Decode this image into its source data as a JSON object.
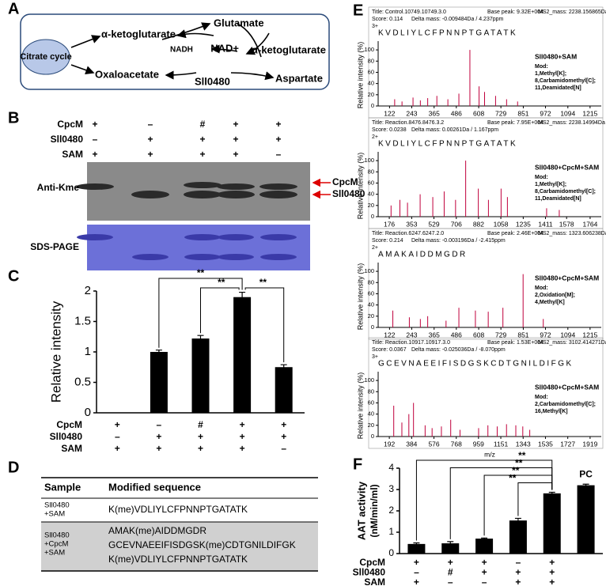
{
  "panel_labels": [
    "A",
    "B",
    "C",
    "D",
    "E",
    "F"
  ],
  "panel_a": {
    "citrate": "Citrate cycle",
    "akg1": "α-ketoglutarate",
    "glutamate": "Glutamate",
    "nadh": "NADH",
    "nad": "NAD+",
    "akg2": "α-ketoglutarate",
    "oxaloacetate": "Oxaloacetate",
    "enzyme": "Sll0480",
    "aspartate": "Aspartate"
  },
  "panel_b": {
    "row_names": [
      "CpcM",
      "Sll0480",
      "SAM"
    ],
    "rows": [
      [
        "+",
        "–",
        "#",
        "+",
        "+"
      ],
      [
        "–",
        "+",
        "+",
        "+",
        "+"
      ],
      [
        "+",
        "+",
        "+",
        "+",
        "–"
      ]
    ],
    "blot_label": "Anti-Kme",
    "band_labels": [
      "CpcM",
      "Sll0480"
    ],
    "gel_label": "SDS-PAGE"
  },
  "panel_c": {
    "type": "bar",
    "ylabel": "Relative intensity",
    "values": [
      0,
      1.0,
      1.22,
      1.9,
      0.75
    ],
    "errors": [
      null,
      0.03,
      0.05,
      0.08,
      0.04
    ],
    "ylim": [
      0,
      2
    ],
    "yticks": [
      0,
      0.5,
      1,
      1.5,
      2
    ],
    "color": "#000000",
    "row_names": [
      "CpcM",
      "Sll0480",
      "SAM"
    ],
    "rows": [
      [
        "+",
        "–",
        "#",
        "+",
        "+"
      ],
      [
        "–",
        "+",
        "+",
        "+",
        "+"
      ],
      [
        "+",
        "+",
        "+",
        "+",
        "–"
      ]
    ],
    "significance": [
      "**",
      "**",
      "**"
    ]
  },
  "panel_d": {
    "header": [
      "Sample",
      "Modified sequence"
    ],
    "groups": [
      {
        "sample": [
          "Sll0480",
          "+SAM"
        ],
        "sequences": [
          "K(me)VDLIYLCFPNNPTGATATK"
        ]
      },
      {
        "sample": [
          "Sll0480",
          "+CpcM",
          "+SAM"
        ],
        "sequences": [
          "AMAK(me)AIDDMGDR",
          "GCEVNAEEIFISDGSK(me)CDTGNILDIFGK",
          "K(me)VDLIYLCFPNNPTGATATK"
        ]
      }
    ]
  },
  "panel_e": {
    "ylabel": "Relative intensity (%)",
    "xlabel": "m/z",
    "yticks": [
      0,
      20,
      40,
      60,
      80,
      100
    ],
    "ylim": [
      0,
      110
    ],
    "color": "#c0003c",
    "spectra": [
      {
        "title": "Title: Control.10749.10749.3.0",
        "base_peak": "Base peak: 9.32E+004",
        "ms2_mass": "MS2_mass: 2238.156865Da",
        "score": "Score: 0.114",
        "delta_mass": "Delta mass: -0.009484Da / 4.237ppm",
        "charge": "3+",
        "sequence": "KVDLIYLCFPNNPTGATATK",
        "sample": "Sll0480+SAM",
        "mod": [
          "Mod:",
          "1,Methyl[K];",
          "8,Carbamidomethyl[C];",
          "11,Deamidated[N]"
        ],
        "xlim": [
          60,
          1276
        ],
        "xticks": [
          122,
          243,
          365,
          486,
          608,
          729,
          851,
          972,
          1094,
          1215
        ],
        "peaks_x": [
          150,
          190,
          250,
          290,
          330,
          380,
          440,
          500,
          560,
          610,
          640,
          700,
          760,
          820
        ],
        "peaks_y": [
          12,
          8,
          15,
          10,
          14,
          18,
          12,
          22,
          100,
          35,
          25,
          18,
          12,
          8
        ]
      },
      {
        "title": "Title: Reaction.8476.8476.3.2",
        "base_peak": "Base peak: 7.95E+004",
        "ms2_mass": "MS2_mass: 2238.14994Da",
        "score": "Score: 0.0238",
        "delta_mass": "Delta mass: 0.00261Da / 1.167ppm",
        "charge": "2+",
        "sequence": "KVDLIYLCFPNNPTGATATK",
        "sample": "Sll0480+CpcM+SAM",
        "mod": [
          "Mod:",
          "1,Methyl[K];",
          "8,Carbamidomethyl[C];",
          "11,Deamidated[N]"
        ],
        "xlim": [
          88,
          1852
        ],
        "xticks": [
          176,
          353,
          529,
          706,
          882,
          1058,
          1235,
          1411,
          1578,
          1764
        ],
        "peaks_x": [
          190,
          260,
          320,
          420,
          520,
          610,
          700,
          780,
          880,
          960,
          1060,
          1110,
          1420,
          1520
        ],
        "peaks_y": [
          20,
          30,
          25,
          40,
          35,
          45,
          30,
          100,
          50,
          30,
          50,
          35,
          15,
          12
        ]
      },
      {
        "title": "Title: Reaction.6247.6247.2.0",
        "base_peak": "Base peak: 2.46E+004",
        "ms2_mass": "MS2_mass: 1323.606238Da",
        "score": "Score: 0.214",
        "delta_mass": "Delta mass: -0.003196Da / -2.415ppm",
        "charge": "2+",
        "sequence": "AMAKAIDDMGDR",
        "sample": "Sll0480+CpcM+SAM",
        "mod": [
          "Mod:",
          "2,Oxidation[M];",
          "4,Methyl[K]"
        ],
        "xlim": [
          60,
          1276
        ],
        "xticks": [
          122,
          243,
          365,
          486,
          608,
          729,
          851,
          972,
          1094,
          1215
        ],
        "peaks_x": [
          140,
          230,
          290,
          330,
          430,
          500,
          590,
          660,
          740,
          850,
          960
        ],
        "peaks_y": [
          30,
          18,
          15,
          20,
          12,
          35,
          30,
          28,
          35,
          95,
          15
        ]
      },
      {
        "title": "Title: Reaction.10917.10917.3.0",
        "base_peak": "Base peak: 1.53E+004",
        "ms2_mass": "MS2_mass: 3102.414271Da",
        "score": "Score: 0.0367",
        "delta_mass": "Delta mass: -0.025036Da / -8.070ppm",
        "charge": "3+",
        "sequence": "GCEVNAEEIFISDGSKCDTGNILDIFGK",
        "sample": "Sll0480+CpcM+SAM",
        "mod": [
          "Mod:",
          "2,Carbamidomethyl[C];",
          "16,Methyl[K]"
        ],
        "xlim": [
          96,
          2015
        ],
        "xticks": [
          192,
          384,
          576,
          768,
          959,
          1151,
          1343,
          1535,
          1727,
          1919
        ],
        "peaks_x": [
          230,
          300,
          360,
          400,
          500,
          560,
          640,
          720,
          800,
          960,
          1040,
          1120,
          1200,
          1280,
          1340,
          1400
        ],
        "peaks_y": [
          55,
          25,
          40,
          60,
          20,
          15,
          18,
          30,
          12,
          15,
          20,
          18,
          22,
          20,
          18,
          12
        ]
      }
    ]
  },
  "panel_f": {
    "type": "bar",
    "ylabel": [
      "AAT activity",
      "(nM/min/ml)"
    ],
    "values": [
      0.45,
      0.48,
      0.7,
      1.55,
      2.82,
      3.2
    ],
    "errors": [
      0.05,
      0.08,
      0.03,
      0.1,
      0.05,
      0.05
    ],
    "ylim": [
      0,
      4
    ],
    "yticks": [
      0,
      1,
      2,
      3,
      4
    ],
    "color": "#000000",
    "pc_label": "PC",
    "row_names": [
      "CpcM",
      "Sll0480",
      "SAM"
    ],
    "rows": [
      [
        "+",
        "+",
        "+",
        "–",
        "+"
      ],
      [
        "–",
        "#",
        "+",
        "+",
        "+"
      ],
      [
        "+",
        "–",
        "–",
        "+",
        "+"
      ]
    ],
    "significance": [
      "**",
      "**",
      "**",
      "**"
    ]
  }
}
